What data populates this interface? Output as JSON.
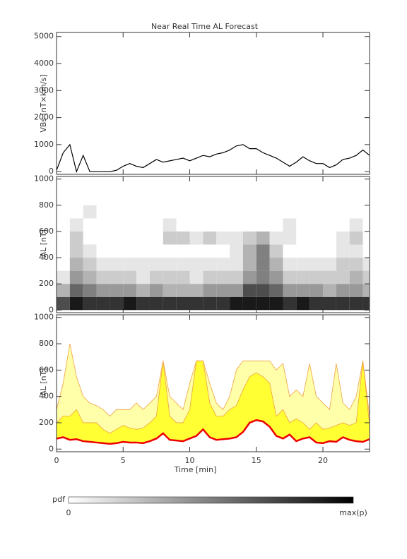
{
  "chart_data": [
    {
      "type": "line",
      "title": "Near Real Time AL Forecast",
      "y_label": "VBs [nT×km/s]",
      "color": "#000000",
      "xlim": [
        0,
        23.5
      ],
      "xticks": [
        0,
        5,
        10,
        15,
        20
      ],
      "ylim": [
        -100,
        5150
      ],
      "yticks": [
        0,
        1000,
        2000,
        3000,
        4000,
        5000
      ],
      "x": [
        0,
        0.5,
        1,
        1.5,
        2,
        2.5,
        3,
        3.5,
        4,
        4.5,
        5,
        5.5,
        6,
        6.5,
        7,
        7.5,
        8,
        8.5,
        9,
        9.5,
        10,
        10.5,
        11,
        11.5,
        12,
        12.5,
        13,
        13.5,
        14,
        14.5,
        15,
        15.5,
        16,
        16.5,
        17,
        17.5,
        18,
        18.5,
        19,
        19.5,
        20,
        20.5,
        21,
        21.5,
        22,
        22.5,
        23,
        23.5
      ],
      "values": [
        50,
        700,
        1000,
        0,
        600,
        0,
        0,
        0,
        0,
        50,
        200,
        300,
        200,
        150,
        300,
        450,
        350,
        400,
        450,
        500,
        400,
        500,
        600,
        550,
        650,
        700,
        800,
        950,
        1000,
        850,
        850,
        700,
        600,
        500,
        350,
        200,
        350,
        550,
        400,
        300,
        300,
        150,
        250,
        450,
        500,
        600,
        800,
        600
      ]
    },
    {
      "type": "heatmap",
      "y_label": "-AL [nT]",
      "xlim": [
        0,
        23.5
      ],
      "xticks": [
        0,
        5,
        10,
        15,
        20
      ],
      "ylim": [
        -20,
        1020
      ],
      "yticks": [
        0,
        200,
        400,
        600,
        800,
        1000
      ],
      "x_bins": [
        0,
        1,
        2,
        3,
        4,
        5,
        6,
        7,
        8,
        9,
        10,
        11,
        12,
        13,
        14,
        15,
        16,
        17,
        18,
        19,
        20,
        21,
        22,
        23,
        23.5
      ],
      "y_bins": [
        0,
        100,
        200,
        300,
        400,
        500,
        600,
        700,
        800
      ],
      "pdf": [
        [
          0.7,
          0.3,
          0.1,
          0,
          0,
          0,
          0,
          0
        ],
        [
          0.9,
          0.6,
          0.4,
          0.3,
          0.2,
          0.2,
          0.1,
          0
        ],
        [
          0.8,
          0.5,
          0.3,
          0.2,
          0.1,
          0,
          0,
          0.1
        ],
        [
          0.8,
          0.4,
          0.2,
          0.1,
          0,
          0,
          0,
          0
        ],
        [
          0.8,
          0.4,
          0.2,
          0.1,
          0,
          0,
          0,
          0
        ],
        [
          0.9,
          0.4,
          0.2,
          0.1,
          0,
          0,
          0,
          0
        ],
        [
          0.8,
          0.3,
          0.1,
          0.1,
          0,
          0,
          0,
          0
        ],
        [
          0.8,
          0.4,
          0.2,
          0.1,
          0,
          0,
          0,
          0
        ],
        [
          0.8,
          0.3,
          0.2,
          0.1,
          0,
          0.2,
          0.1,
          0
        ],
        [
          0.8,
          0.3,
          0.2,
          0.1,
          0,
          0.2,
          0,
          0
        ],
        [
          0.8,
          0.3,
          0.1,
          0.1,
          0,
          0.1,
          0,
          0
        ],
        [
          0.8,
          0.4,
          0.2,
          0.1,
          0,
          0.2,
          0,
          0
        ],
        [
          0.8,
          0.4,
          0.2,
          0.1,
          0,
          0.1,
          0,
          0
        ],
        [
          0.9,
          0.4,
          0.2,
          0.1,
          0.1,
          0.1,
          0,
          0
        ],
        [
          0.9,
          0.7,
          0.4,
          0.3,
          0.3,
          0.2,
          0,
          0
        ],
        [
          0.9,
          0.7,
          0.5,
          0.5,
          0.5,
          0.3,
          0,
          0
        ],
        [
          0.9,
          0.6,
          0.4,
          0.3,
          0.2,
          0.1,
          0,
          0
        ],
        [
          0.8,
          0.4,
          0.2,
          0.1,
          0,
          0.1,
          0.1,
          0
        ],
        [
          0.9,
          0.4,
          0.2,
          0.1,
          0,
          0,
          0,
          0
        ],
        [
          0.8,
          0.4,
          0.2,
          0.1,
          0,
          0,
          0,
          0
        ],
        [
          0.8,
          0.3,
          0.2,
          0.1,
          0,
          0,
          0,
          0
        ],
        [
          0.8,
          0.4,
          0.2,
          0.2,
          0.1,
          0.1,
          0,
          0
        ],
        [
          0.8,
          0.4,
          0.3,
          0.2,
          0.1,
          0.2,
          0.1,
          0
        ],
        [
          0.8,
          0.3,
          0.2,
          0.1,
          0,
          0,
          0,
          0
        ]
      ]
    },
    {
      "type": "band",
      "y_label": "-AL [nT]",
      "x_label": "Time [min]",
      "xlim": [
        0,
        23.5
      ],
      "xticks": [
        0,
        5,
        10,
        15,
        20
      ],
      "ylim": [
        -20,
        1020
      ],
      "yticks": [
        0,
        200,
        400,
        600,
        800,
        1000
      ],
      "outer_color": "#ffffaa",
      "inner_color": "#ffff33",
      "edge_color": "#f0a040",
      "median_color": "#ee0000",
      "x": [
        0,
        0.5,
        1,
        1.5,
        2,
        2.5,
        3,
        3.5,
        4,
        4.5,
        5,
        5.5,
        6,
        6.5,
        7,
        7.5,
        8,
        8.5,
        9,
        9.5,
        10,
        10.5,
        11,
        11.5,
        12,
        12.5,
        13,
        13.5,
        14,
        14.5,
        15,
        15.5,
        16,
        16.5,
        17,
        17.5,
        18,
        18.5,
        19,
        19.5,
        20,
        20.5,
        21,
        21.5,
        22,
        22.5,
        23,
        23.5
      ],
      "upper": [
        300,
        500,
        800,
        550,
        400,
        350,
        330,
        300,
        250,
        300,
        300,
        300,
        350,
        300,
        350,
        400,
        670,
        400,
        350,
        300,
        500,
        670,
        670,
        500,
        350,
        300,
        400,
        600,
        670,
        670,
        670,
        670,
        670,
        600,
        650,
        400,
        450,
        400,
        650,
        400,
        350,
        300,
        650,
        350,
        300,
        400,
        670,
        250
      ],
      "inner": [
        200,
        250,
        250,
        300,
        200,
        200,
        200,
        150,
        120,
        150,
        180,
        160,
        150,
        160,
        200,
        250,
        670,
        250,
        200,
        200,
        300,
        670,
        670,
        350,
        250,
        250,
        300,
        330,
        450,
        550,
        580,
        550,
        500,
        250,
        300,
        200,
        230,
        200,
        150,
        200,
        150,
        160,
        180,
        200,
        180,
        200,
        670,
        180
      ],
      "median": [
        80,
        90,
        70,
        75,
        60,
        55,
        50,
        45,
        40,
        45,
        55,
        50,
        50,
        45,
        60,
        80,
        120,
        70,
        65,
        60,
        80,
        100,
        150,
        90,
        70,
        75,
        80,
        90,
        130,
        200,
        220,
        210,
        170,
        100,
        80,
        110,
        60,
        80,
        90,
        50,
        45,
        60,
        55,
        90,
        70,
        60,
        55,
        75
      ]
    }
  ],
  "colorbar": {
    "label": "pdf",
    "min_label": "0",
    "max_label": "max(p)"
  }
}
